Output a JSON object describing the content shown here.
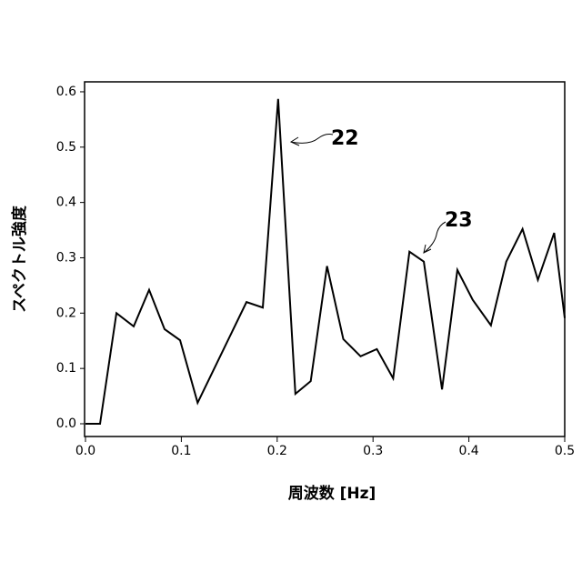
{
  "chart_data": {
    "type": "line",
    "x_label": "周波数 [Hz]",
    "y_label": "スペクトル強度",
    "x": [
      0,
      0.0152,
      0.0323,
      0.0503,
      0.0664,
      0.0825,
      0.0987,
      0.117,
      0.168,
      0.185,
      0.201,
      0.219,
      0.235,
      0.252,
      0.269,
      0.287,
      0.304,
      0.321,
      0.338,
      0.353,
      0.372,
      0.388,
      0.404,
      0.423,
      0.439,
      0.456,
      0.472,
      0.489,
      0.5
    ],
    "series": [
      {
        "color": "#000000",
        "values": [
          0,
          0,
          0.2,
          0.176,
          0.242,
          0.171,
          0.151,
          0.038,
          0.22,
          0.21,
          0.587,
          0.054,
          0.077,
          0.285,
          0.153,
          0.122,
          0.135,
          0.082,
          0.311,
          0.293,
          0.062,
          0.278,
          0.224,
          0.178,
          0.293,
          0.352,
          0.26,
          0.345,
          0.191
        ]
      }
    ],
    "xlim": [
      0,
      0.5
    ],
    "ylim": [
      -0.023,
      0.618
    ],
    "xticks": [
      {
        "value": 0,
        "label": "0.0"
      },
      0.1,
      0.2,
      0.3,
      0.4,
      0.5
    ],
    "yticks": [
      {
        "value": 0,
        "label": "0.0"
      },
      0.1,
      0.2,
      0.3,
      0.4,
      0.5,
      0.6
    ],
    "annotations": [
      "22",
      "23"
    ]
  }
}
